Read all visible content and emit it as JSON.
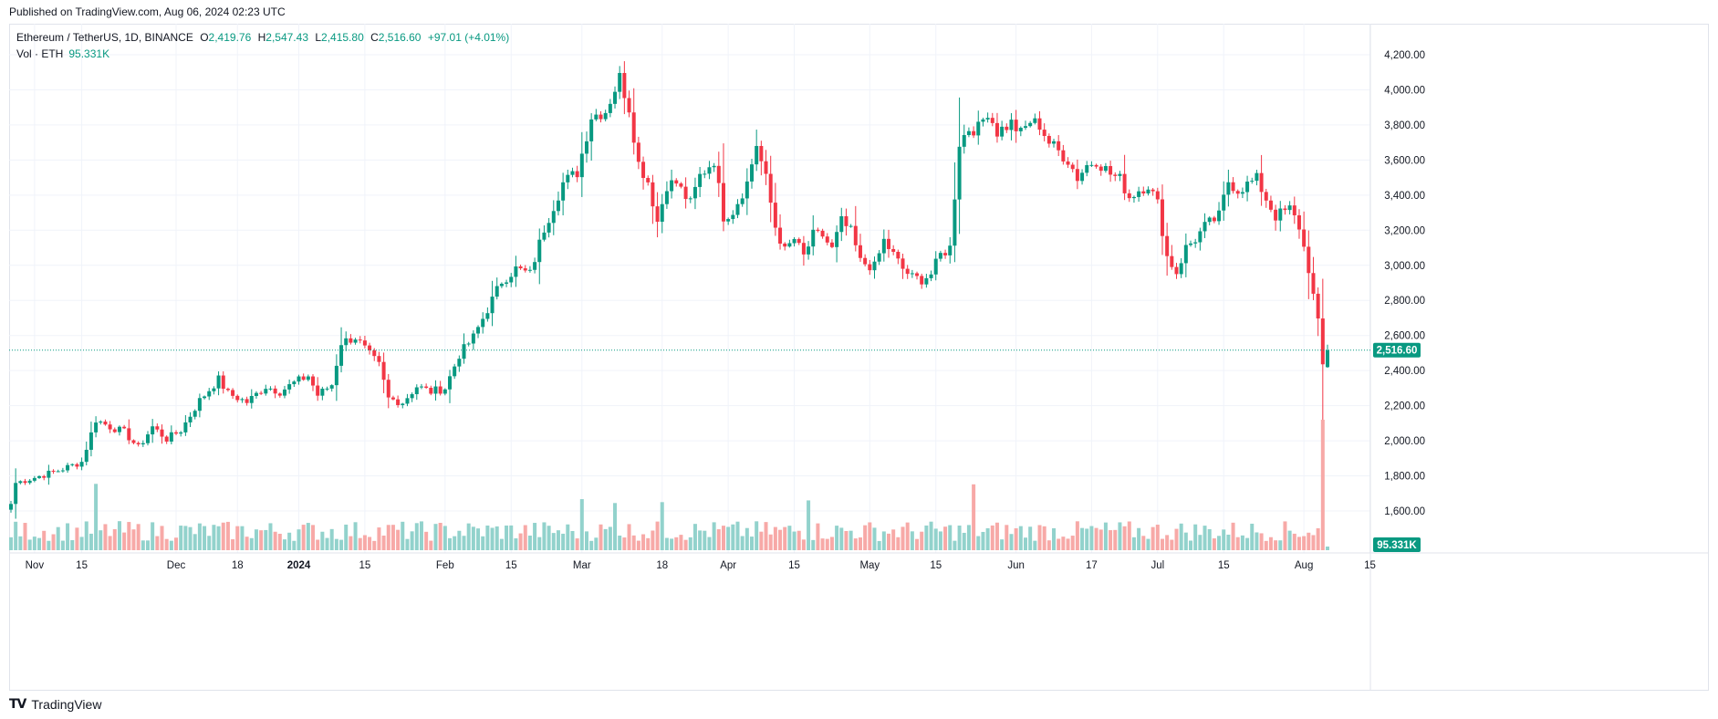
{
  "header": {
    "published": "Published on TradingView.com, Aug 06, 2024 02:23 UTC"
  },
  "legend": {
    "symbol": "Ethereum / TetherUS, 1D, BINANCE",
    "open_label": "O",
    "open": "2,419.76",
    "high_label": "H",
    "high": "2,547.43",
    "low_label": "L",
    "low": "2,415.80",
    "close_label": "C",
    "close": "2,516.60",
    "change": "+97.01 (+4.01%)",
    "volume_label": "Vol · ETH",
    "volume": "95.331K"
  },
  "price_badge": "2,516.60",
  "volume_badge": "95.331K",
  "brand": "TradingView",
  "colors": {
    "up": "#089981",
    "down": "#f23645",
    "up_volume": "#92d2cc",
    "down_volume": "#f7a9a7",
    "grid": "#f0f3fa"
  },
  "chart_data": {
    "type": "candlestick",
    "y_ticks": [
      "4,200.00",
      "4,000.00",
      "3,800.00",
      "3,600.00",
      "3,400.00",
      "3,200.00",
      "3,000.00",
      "2,800.00",
      "2,600.00",
      "2,400.00",
      "2,200.00",
      "2,000.00",
      "1,800.00",
      "1,600.00"
    ],
    "y_tick_values": [
      4200,
      4000,
      3800,
      3600,
      3400,
      3200,
      3000,
      2800,
      2600,
      2400,
      2200,
      2000,
      1800,
      1600
    ],
    "ylim": [
      1500,
      4300
    ],
    "x_ticks": [
      {
        "label": "Nov",
        "day": 5,
        "bold": false
      },
      {
        "label": "15",
        "day": 15,
        "bold": false
      },
      {
        "label": "Dec",
        "day": 35,
        "bold": false
      },
      {
        "label": "18",
        "day": 48,
        "bold": false
      },
      {
        "label": "2024",
        "day": 61,
        "bold": true
      },
      {
        "label": "15",
        "day": 75,
        "bold": false
      },
      {
        "label": "Feb",
        "day": 92,
        "bold": false
      },
      {
        "label": "15",
        "day": 106,
        "bold": false
      },
      {
        "label": "Mar",
        "day": 121,
        "bold": false
      },
      {
        "label": "18",
        "day": 138,
        "bold": false
      },
      {
        "label": "Apr",
        "day": 152,
        "bold": false
      },
      {
        "label": "15",
        "day": 166,
        "bold": false
      },
      {
        "label": "May",
        "day": 182,
        "bold": false
      },
      {
        "label": "15",
        "day": 196,
        "bold": false
      },
      {
        "label": "Jun",
        "day": 213,
        "bold": false
      },
      {
        "label": "17",
        "day": 229,
        "bold": false
      },
      {
        "label": "Jul",
        "day": 243,
        "bold": false
      },
      {
        "label": "15",
        "day": 257,
        "bold": false
      },
      {
        "label": "Aug",
        "day": 274,
        "bold": false
      },
      {
        "label": "15",
        "day": 288,
        "bold": false
      }
    ],
    "close_anchors": [
      [
        0,
        1640
      ],
      [
        1,
        1760
      ],
      [
        5,
        1790
      ],
      [
        10,
        1830
      ],
      [
        15,
        1880
      ],
      [
        18,
        2120
      ],
      [
        21,
        2080
      ],
      [
        24,
        2050
      ],
      [
        27,
        1960
      ],
      [
        30,
        2080
      ],
      [
        33,
        2010
      ],
      [
        36,
        2060
      ],
      [
        40,
        2230
      ],
      [
        44,
        2350
      ],
      [
        46,
        2270
      ],
      [
        50,
        2220
      ],
      [
        54,
        2310
      ],
      [
        57,
        2280
      ],
      [
        60,
        2330
      ],
      [
        63,
        2370
      ],
      [
        65,
        2260
      ],
      [
        68,
        2320
      ],
      [
        70,
        2560
      ],
      [
        73,
        2590
      ],
      [
        76,
        2490
      ],
      [
        78,
        2430
      ],
      [
        80,
        2240
      ],
      [
        83,
        2220
      ],
      [
        86,
        2310
      ],
      [
        89,
        2280
      ],
      [
        92,
        2300
      ],
      [
        95,
        2490
      ],
      [
        98,
        2590
      ],
      [
        101,
        2750
      ],
      [
        104,
        2910
      ],
      [
        107,
        2980
      ],
      [
        110,
        2950
      ],
      [
        113,
        3210
      ],
      [
        117,
        3470
      ],
      [
        120,
        3530
      ],
      [
        123,
        3850
      ],
      [
        126,
        3880
      ],
      [
        129,
        4070
      ],
      [
        131,
        3900
      ],
      [
        133,
        3580
      ],
      [
        135,
        3480
      ],
      [
        137,
        3250
      ],
      [
        139,
        3460
      ],
      [
        141,
        3470
      ],
      [
        144,
        3350
      ],
      [
        146,
        3510
      ],
      [
        149,
        3600
      ],
      [
        151,
        3280
      ],
      [
        153,
        3310
      ],
      [
        156,
        3470
      ],
      [
        158,
        3690
      ],
      [
        160,
        3490
      ],
      [
        162,
        3220
      ],
      [
        164,
        3080
      ],
      [
        166,
        3150
      ],
      [
        168,
        3050
      ],
      [
        170,
        3170
      ],
      [
        172,
        3170
      ],
      [
        174,
        3090
      ],
      [
        176,
        3250
      ],
      [
        178,
        3190
      ],
      [
        180,
        3020
      ],
      [
        183,
        2990
      ],
      [
        185,
        3140
      ],
      [
        187,
        3060
      ],
      [
        189,
        2980
      ],
      [
        191,
        2930
      ],
      [
        193,
        2920
      ],
      [
        195,
        2950
      ],
      [
        197,
        3060
      ],
      [
        199,
        3100
      ],
      [
        201,
        3700
      ],
      [
        203,
        3780
      ],
      [
        205,
        3780
      ],
      [
        207,
        3880
      ],
      [
        209,
        3760
      ],
      [
        212,
        3810
      ],
      [
        214,
        3750
      ],
      [
        216,
        3820
      ],
      [
        218,
        3800
      ],
      [
        220,
        3700
      ],
      [
        222,
        3650
      ],
      [
        224,
        3600
      ],
      [
        226,
        3500
      ],
      [
        228,
        3570
      ],
      [
        230,
        3600
      ],
      [
        233,
        3520
      ],
      [
        235,
        3490
      ],
      [
        237,
        3390
      ],
      [
        239,
        3430
      ],
      [
        241,
        3460
      ],
      [
        243,
        3350
      ],
      [
        245,
        3050
      ],
      [
        247,
        2960
      ],
      [
        249,
        3100
      ],
      [
        251,
        3150
      ],
      [
        253,
        3220
      ],
      [
        256,
        3280
      ],
      [
        258,
        3480
      ],
      [
        260,
        3430
      ],
      [
        262,
        3460
      ],
      [
        264,
        3490
      ],
      [
        266,
        3380
      ],
      [
        268,
        3280
      ],
      [
        271,
        3320
      ],
      [
        273,
        3220
      ],
      [
        275,
        2980
      ],
      [
        277,
        2670
      ],
      [
        278,
        2430
      ],
      [
        279,
        2520
      ]
    ],
    "last_candle": {
      "open": 2419.76,
      "high": 2547.43,
      "low": 2415.8,
      "close": 2516.6
    },
    "days_total": 280,
    "last_price": 2516.6,
    "volume_spikes_days": [
      18,
      121,
      128,
      138,
      169,
      204,
      278
    ],
    "grid": true
  }
}
